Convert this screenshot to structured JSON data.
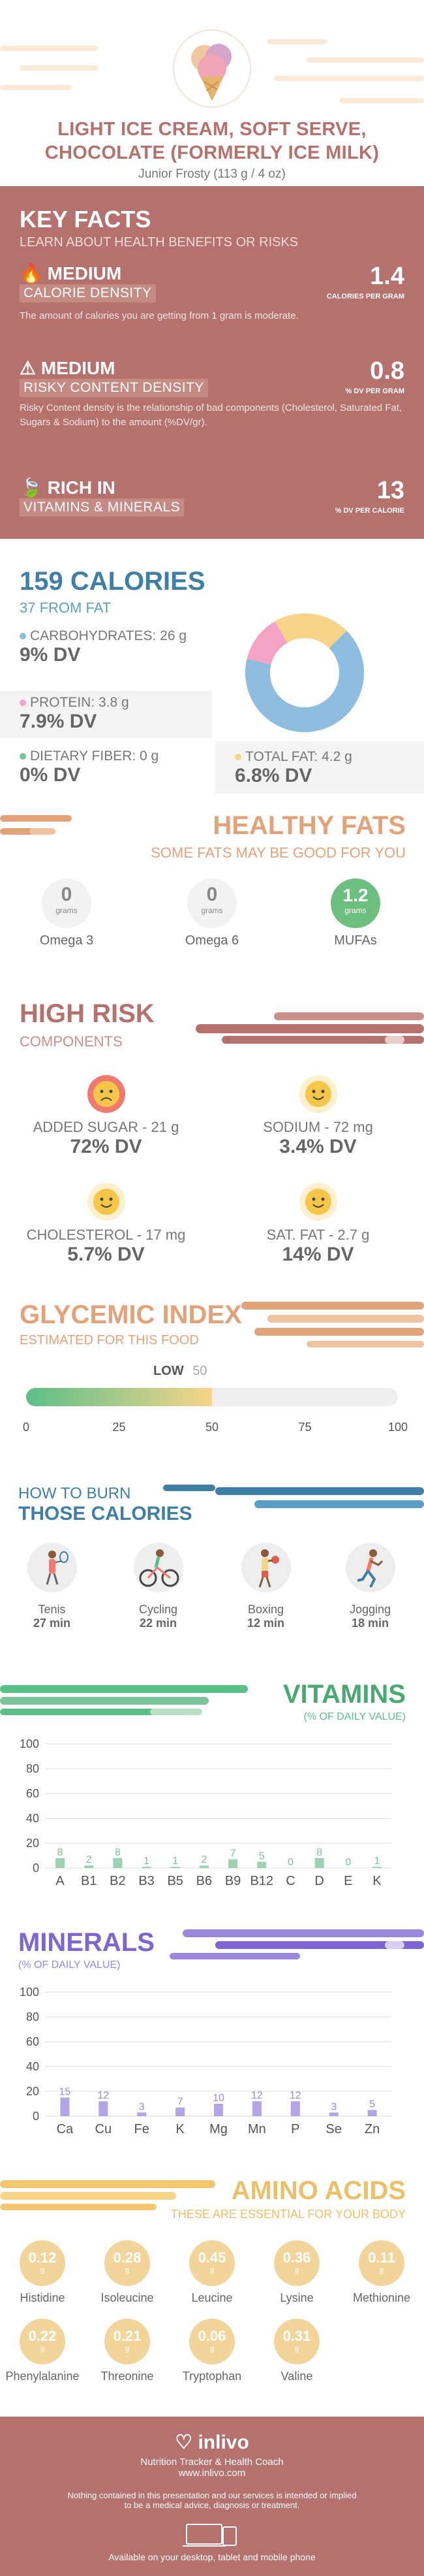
{
  "header": {
    "title_line1": "LIGHT ICE CREAM, SOFT SERVE,",
    "title_line2": "CHOCOLATE (FORMERLY ICE MILK)",
    "serving": "Junior Frosty (113 g / 4 oz)"
  },
  "key_facts": {
    "title": "KEY FACTS",
    "subtitle": "LEARN ABOUT HEALTH BENEFITS OR RISKS",
    "items": [
      {
        "level": "MEDIUM",
        "label": "CALORIE DENSITY",
        "value": "1.4",
        "unit": "CALORIES PER GRAM",
        "desc": "The amount of calories you are getting from 1 gram is moderate."
      },
      {
        "level": "MEDIUM",
        "label": "RISKY CONTENT DENSITY",
        "value": "0.8",
        "unit": "% DV PER GRAM",
        "desc": "Risky Content density is the relationship of bad components (Cholesterol, Saturated Fat, Sugars & Sodium) to the amount (%DV/gr)."
      },
      {
        "level": "RICH  IN",
        "label": "VITAMINS & MINERALS",
        "value": "13",
        "unit": "% DV PER CALORIE",
        "desc": ""
      }
    ]
  },
  "calories": {
    "title": "159 CALORIES",
    "from_fat": "37 FROM FAT",
    "carbs_label": "CARBOHYDRATES: 26 g",
    "carbs_dv": "9% DV",
    "protein_label": "PROTEIN: 3.8 g",
    "protein_dv": "7.9% DV",
    "fiber_label": "DIETARY FIBER: 0 g",
    "fiber_dv": "0% DV",
    "fat_label": "TOTAL FAT: 4.2 g",
    "fat_dv": "6.8% DV",
    "colors": {
      "carbs": "#8fbde0",
      "protein": "#f4a3c4",
      "fat": "#f6d58a",
      "fiber": "#7bc39a"
    }
  },
  "healthy_fats": {
    "title": "HEALTHY FATS",
    "subtitle": "SOME FATS MAY BE GOOD FOR YOU",
    "items": [
      {
        "value": "0",
        "unit": "grams",
        "name": "Omega 3"
      },
      {
        "value": "0",
        "unit": "grams",
        "name": "Omega 6"
      },
      {
        "value": "1.2",
        "unit": "grams",
        "name": "MUFAs"
      }
    ]
  },
  "high_risk": {
    "title": "HIGH RISK",
    "subtitle": "COMPONENTS",
    "items": [
      {
        "label": "ADDED SUGAR - 21 g",
        "dv": "72% DV",
        "face": "sad-face-icon"
      },
      {
        "label": "SODIUM - 72 mg",
        "dv": "3.4% DV",
        "face": "smile-face-icon"
      },
      {
        "label": "CHOLESTEROL - 17 mg",
        "dv": "5.7% DV",
        "face": "smile-face-icon"
      },
      {
        "label": "SAT. FAT - 2.7 g",
        "dv": "14% DV",
        "face": "smile-face-icon"
      }
    ]
  },
  "glycemic": {
    "title": "GLYCEMIC INDEX",
    "subtitle": "ESTIMATED FOR THIS FOOD",
    "level": "LOW",
    "value": "50",
    "value_fraction": 0.5,
    "ticks": [
      "0",
      "25",
      "50",
      "75",
      "100"
    ]
  },
  "burn": {
    "title_line1": "HOW TO BURN",
    "title_line2": "THOSE CALORIES",
    "items": [
      {
        "name": "Tenis",
        "min": "27 min",
        "icon": "tennis-icon"
      },
      {
        "name": "Cycling",
        "min": "22 min",
        "icon": "cycling-icon"
      },
      {
        "name": "Boxing",
        "min": "12 min",
        "icon": "boxing-icon"
      },
      {
        "name": "Jogging",
        "min": "18 min",
        "icon": "jogging-icon"
      }
    ]
  },
  "vitamins": {
    "title": "VITAMINS",
    "subtitle": "(% OF DAILY VALUE)"
  },
  "minerals": {
    "title": "MINERALS",
    "subtitle": "(% OF DAILY VALUE)"
  },
  "chart_data": [
    {
      "type": "bar",
      "title": "VITAMINS",
      "categories": [
        "A",
        "B1",
        "B2",
        "B3",
        "B5",
        "B6",
        "B9",
        "B12",
        "C",
        "D",
        "E",
        "K"
      ],
      "values": [
        8,
        2,
        8,
        1,
        1,
        2,
        7,
        5,
        0,
        8,
        0,
        1
      ],
      "ylim": [
        0,
        100
      ],
      "yticks": [
        "0",
        "20",
        "40",
        "60",
        "80",
        "100"
      ],
      "color": "#7bc39a"
    },
    {
      "type": "bar",
      "title": "MINERALS",
      "categories": [
        "Ca",
        "Cu",
        "Fe",
        "K",
        "Mg",
        "Mn",
        "P",
        "Se",
        "Zn"
      ],
      "values": [
        15,
        12,
        3,
        7,
        10,
        12,
        12,
        3,
        5
      ],
      "ylim": [
        0,
        100
      ],
      "yticks": [
        "0",
        "20",
        "40",
        "60",
        "80",
        "100"
      ],
      "color": "#9b87de"
    }
  ],
  "amino": {
    "title": "AMINO ACIDS",
    "subtitle": "THESE ARE ESSENTIAL FOR YOUR BODY",
    "unit": "g",
    "items": [
      {
        "value": "0.12",
        "name": "Histidine"
      },
      {
        "value": "0.28",
        "name": "Isoleucine"
      },
      {
        "value": "0.45",
        "name": "Leucine"
      },
      {
        "value": "0.36",
        "name": "Lysine"
      },
      {
        "value": "0.11",
        "name": "Methionine"
      },
      {
        "value": "0.22",
        "name": "Phenylalanine"
      },
      {
        "value": "0.21",
        "name": "Threonine"
      },
      {
        "value": "0.06",
        "name": "Tryptophan"
      },
      {
        "value": "0.31",
        "name": "Valine"
      }
    ]
  },
  "footer": {
    "brand": "inlivo",
    "tagline": "Nutrition Tracker & Health Coach",
    "url": "www.inlivo.com",
    "disclaimer_line1": "Nothing contained in this presentation and our services is intended or implied",
    "disclaimer_line2": "to be a medical advice, diagnosis or treatment.",
    "available": "Available on your desktop, tablet and mobile phone"
  }
}
